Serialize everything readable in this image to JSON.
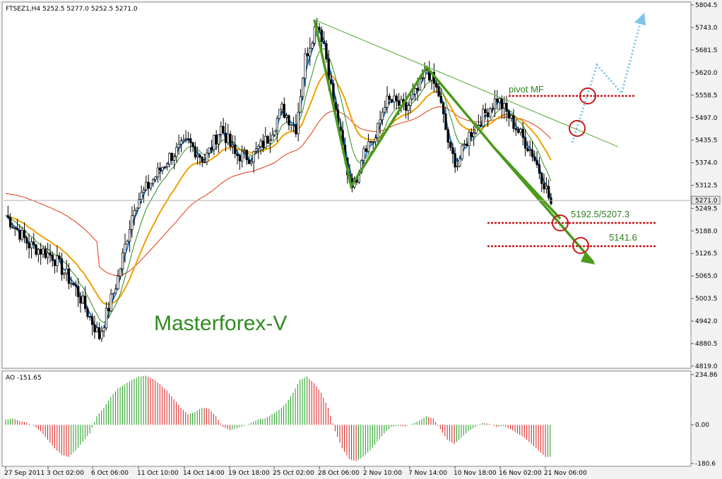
{
  "chart_data": {
    "type": "candlestick",
    "header": "FTSEZ1,H4  5252.5 5277.0 5252.5 5271.0",
    "symbol": "FTSEZ1,H4",
    "ohlc": [
      5252.5,
      5277.0,
      5252.5,
      5271.0
    ],
    "brand_text": "Masterforex-V",
    "price_axis": {
      "ticks": [
        5804.5,
        5743.0,
        5681.5,
        5620.0,
        5558.5,
        5497.0,
        5435.5,
        5374.0,
        5312.5,
        5249.5,
        5188.0,
        5126.5,
        5065.0,
        5003.5,
        4942.0,
        4880.5,
        4819.0
      ],
      "labels": [
        "5804.5",
        "5743.0",
        "5681.5",
        "5620.0",
        "5558.5",
        "5497.0",
        "5435.5",
        "5374.0",
        "5312.5",
        "5249.5",
        "5188.0",
        "5126.5",
        "5065.0",
        "5003.5",
        "4942.0",
        "4880.5",
        "4819.0"
      ],
      "ylim": [
        4819.0,
        5804.5
      ],
      "current_price": 5271.0,
      "current_price_label": "5271.0"
    },
    "time_axis": {
      "labels": [
        "27 Sep 2011",
        "3 Oct 02:00",
        "6 Oct 06:00",
        "11 Oct 10:00",
        "14 Oct 14:00",
        "19 Oct 18:00",
        "25 Oct 02:00",
        "28 Oct 06:00",
        "2 Nov 10:00",
        "7 Nov 14:00",
        "10 Nov 18:00",
        "16 Nov 02:00",
        "21 Nov 06:00"
      ]
    },
    "price_path": [
      [
        0,
        5230
      ],
      [
        10,
        5150
      ],
      [
        20,
        5120
      ],
      [
        30,
        5030
      ],
      [
        40,
        4900
      ],
      [
        48,
        5060
      ],
      [
        55,
        5260
      ],
      [
        62,
        5320
      ],
      [
        70,
        5390
      ],
      [
        78,
        5430
      ],
      [
        85,
        5380
      ],
      [
        92,
        5470
      ],
      [
        98,
        5395
      ],
      [
        105,
        5390
      ],
      [
        112,
        5440
      ],
      [
        118,
        5520
      ],
      [
        124,
        5470
      ],
      [
        128,
        5660
      ],
      [
        133,
        5760
      ],
      [
        136,
        5700
      ],
      [
        140,
        5540
      ],
      [
        146,
        5350
      ],
      [
        149,
        5310
      ],
      [
        153,
        5420
      ],
      [
        158,
        5440
      ],
      [
        162,
        5540
      ],
      [
        166,
        5540
      ],
      [
        171,
        5520
      ],
      [
        176,
        5570
      ],
      [
        180,
        5630
      ],
      [
        185,
        5560
      ],
      [
        190,
        5400
      ],
      [
        193,
        5370
      ],
      [
        198,
        5450
      ],
      [
        205,
        5510
      ],
      [
        210,
        5550
      ],
      [
        215,
        5500
      ],
      [
        220,
        5450
      ],
      [
        225,
        5400
      ],
      [
        230,
        5320
      ],
      [
        233,
        5260
      ]
    ],
    "annotations": {
      "pivot_label": "pivot MF",
      "target1_label": "5192.5/5207.3",
      "target2_label": "5141.6",
      "levels": [
        5558.5,
        5195.0,
        5140.0
      ]
    },
    "ao": {
      "label": "AO -151.65",
      "ticks": [
        234.86,
        0.0,
        -180.6
      ],
      "tick_labels": [
        "234.86",
        "0.00",
        "-180.6"
      ],
      "ylim": [
        -180.6,
        234.86
      ],
      "values": [
        25,
        30,
        18,
        10,
        -5,
        -30,
        -70,
        -110,
        -140,
        -150,
        -120,
        -80,
        -40,
        40,
        80,
        130,
        170,
        190,
        210,
        225,
        230,
        215,
        190,
        160,
        120,
        80,
        50,
        60,
        80,
        75,
        40,
        -10,
        -25,
        -15,
        -5,
        10,
        25,
        30,
        50,
        70,
        100,
        150,
        210,
        225,
        195,
        150,
        80,
        -30,
        -110,
        -160,
        -170,
        -150,
        -120,
        -80,
        -40,
        -10,
        -5,
        -8,
        5,
        20,
        40,
        30,
        -20,
        -70,
        -90,
        -60,
        -30,
        -10,
        10,
        5,
        -10,
        -5,
        -20,
        -40,
        -60,
        -90,
        -120,
        -150
      ]
    },
    "colors": {
      "background": "#ffffff",
      "page": "#f2f2f2",
      "candle": "#000000",
      "ema_fast": "#1e7fd8",
      "ma_green": "#2e8b1e",
      "ma_orange": "#f0a000",
      "ma_red": "#e03a10",
      "pattern": "#4a9a1c",
      "level": "#c81818",
      "forecast": "#7ec3e6",
      "ao_up": "#1a9a1a",
      "ao_down": "#d81818"
    }
  }
}
